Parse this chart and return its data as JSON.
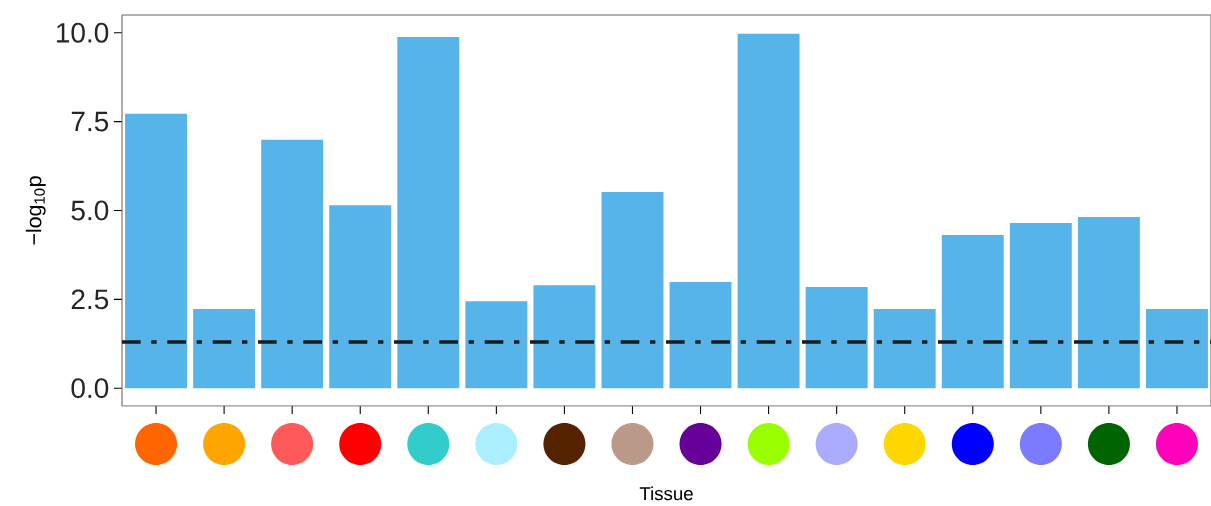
{
  "chart_data": {
    "type": "bar",
    "xlabel": "Tissue",
    "ylabel": "−log$_{10}$p",
    "categories": [
      null,
      null,
      null,
      null,
      null,
      null,
      null,
      null,
      null,
      null,
      null,
      null,
      null,
      null,
      null,
      null
    ],
    "values": [
      7.72,
      2.23,
      6.99,
      5.15,
      9.88,
      2.45,
      2.9,
      5.52,
      2.99,
      9.97,
      2.85,
      2.23,
      4.31,
      4.65,
      4.82,
      2.23
    ],
    "color": "#56b4e9",
    "ylim": [
      -0.5,
      10.5
    ],
    "yticks": [
      {
        "value": 0,
        "label": "0.0"
      },
      2.5,
      {
        "value": 5,
        "label": "5.0"
      },
      7.5,
      {
        "value": 10,
        "label": "10.0"
      }
    ],
    "tick_labels": "y",
    "grid": false,
    "ref_lines": [
      {
        "axis": "y",
        "value": 1.3,
        "color": "#1a1a1a",
        "line_style": "dashdot"
      }
    ]
  }
}
